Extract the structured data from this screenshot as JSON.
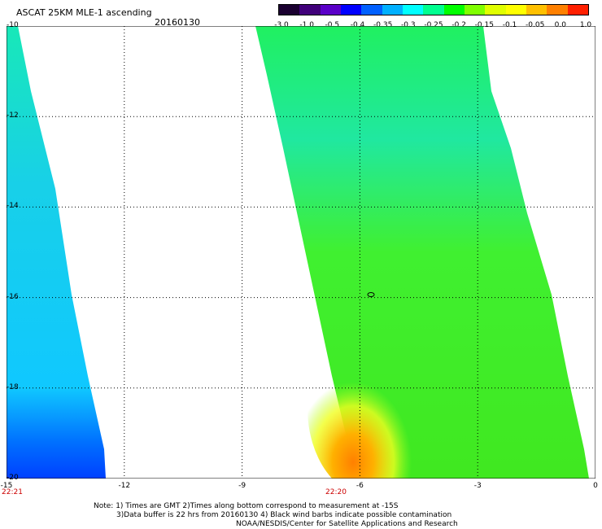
{
  "title": "ASCAT 25KM MLE-1 ascending",
  "date": "20160130",
  "colorbar": {
    "labels": [
      "-3.0",
      "-1.0",
      "-0.5",
      "-0.4",
      "-0.35",
      "-0.3",
      "-0.25",
      "-0.2",
      "-0.15",
      "-0.1",
      "-0.05",
      "0.0",
      "1.0"
    ],
    "colors": [
      "#1a0030",
      "#40007a",
      "#5a00c8",
      "#0000ff",
      "#0060ff",
      "#00b0ff",
      "#00ffff",
      "#00ff90",
      "#00ff00",
      "#80ff00",
      "#e0ff00",
      "#ffff00",
      "#ffc000",
      "#ff8000",
      "#ff2000"
    ]
  },
  "map": {
    "lat_range": [
      -20,
      -10
    ],
    "lon_range": [
      -15,
      0
    ],
    "lat_ticks": [
      "-10",
      "-12",
      "-14",
      "-16",
      "-18",
      "-20"
    ],
    "lon_ticks": [
      "-15",
      "-12",
      "-9",
      "-6",
      "-3",
      "0"
    ],
    "swath_times": [
      "22:21",
      "22:20"
    ]
  },
  "notes": {
    "line1": "Note: 1) Times are GMT 2)Times along bottom correspond to measurement at -15S",
    "line2": "3)Data buffer is 22 hrs from 20160130 4) Black wind barbs indicate possible contamination",
    "line3": "NOAA/NESDIS/Center for Satellite Applications and Research"
  }
}
